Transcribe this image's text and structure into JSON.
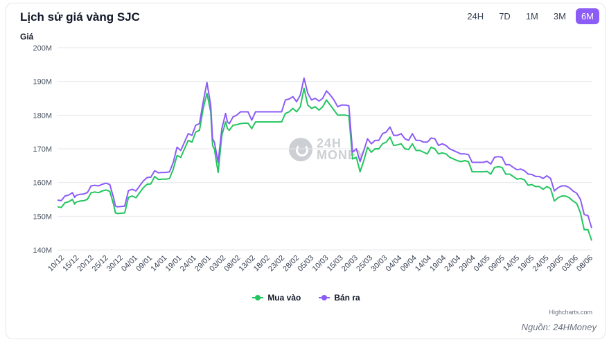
{
  "header": {
    "title": "Lịch sử giá vàng SJC"
  },
  "ranges": [
    {
      "label": "24H",
      "active": false
    },
    {
      "label": "7D",
      "active": false
    },
    {
      "label": "1M",
      "active": false
    },
    {
      "label": "3M",
      "active": false
    },
    {
      "label": "6M",
      "active": true
    }
  ],
  "watermark": {
    "line1": "24H",
    "line2": "MONEY"
  },
  "footer": {
    "credits": "Highcharts.com",
    "source": "Nguồn: 24HMoney"
  },
  "colors": {
    "buy": "#22c55e",
    "sell": "#8b5cf6",
    "grid": "#e5e7eb",
    "active_range": "#8b5cf6"
  },
  "chart_data": {
    "type": "line",
    "ylabel": "Giá",
    "ylim": [
      140,
      200
    ],
    "y_unit": "M",
    "y_ticks": [
      "140M",
      "150M",
      "160M",
      "170M",
      "180M",
      "190M",
      "200M"
    ],
    "x_ticks": [
      "10/12",
      "15/12",
      "20/12",
      "25/12",
      "30/12",
      "04/01",
      "09/01",
      "14/01",
      "19/01",
      "24/01",
      "29/01",
      "03/02",
      "08/02",
      "13/02",
      "18/02",
      "23/02",
      "28/02",
      "05/03",
      "10/03",
      "15/03",
      "20/03",
      "25/03",
      "30/03",
      "04/04",
      "09/04",
      "14/04",
      "19/04",
      "24/04",
      "29/04",
      "04/05",
      "09/05",
      "14/05",
      "19/05",
      "24/05",
      "29/05",
      "03/06",
      "08/06"
    ],
    "legend": {
      "position": "bottom-center"
    },
    "grid": true,
    "series": [
      {
        "name": "Mua vào",
        "points": [
          [
            0,
            152.8
          ],
          [
            1,
            152.6
          ],
          [
            2,
            154
          ],
          [
            3,
            154.3
          ],
          [
            4,
            155
          ],
          [
            4.6,
            153.6
          ],
          [
            5,
            154.2
          ],
          [
            6,
            154.5
          ],
          [
            7,
            154.6
          ],
          [
            8,
            155
          ],
          [
            9,
            157
          ],
          [
            10,
            157.2
          ],
          [
            11,
            157
          ],
          [
            12,
            157.5
          ],
          [
            13,
            157.8
          ],
          [
            14,
            157.4
          ],
          [
            15,
            153.5
          ],
          [
            15.5,
            151
          ],
          [
            16,
            150.8
          ],
          [
            17,
            150.9
          ],
          [
            18,
            151
          ],
          [
            19,
            155.6
          ],
          [
            20,
            156
          ],
          [
            21,
            155.5
          ],
          [
            22,
            157
          ],
          [
            23,
            158.5
          ],
          [
            24,
            159.5
          ],
          [
            25,
            159.6
          ],
          [
            26,
            161.8
          ],
          [
            27,
            160.9
          ],
          [
            28,
            161
          ],
          [
            29,
            161
          ],
          [
            30,
            161.2
          ],
          [
            31,
            164
          ],
          [
            32,
            168
          ],
          [
            33,
            167.5
          ],
          [
            34,
            170
          ],
          [
            35,
            172.5
          ],
          [
            36,
            172
          ],
          [
            37,
            175
          ],
          [
            38,
            175.5
          ],
          [
            39,
            182
          ],
          [
            40,
            186.5
          ],
          [
            41,
            181
          ],
          [
            41.5,
            171
          ],
          [
            42,
            170
          ],
          [
            43,
            163
          ],
          [
            44,
            174
          ],
          [
            45,
            178
          ],
          [
            45.5,
            176
          ],
          [
            46,
            175.5
          ],
          [
            47,
            177
          ],
          [
            48,
            177.2
          ],
          [
            49,
            177.5
          ],
          [
            50,
            177.6
          ],
          [
            51,
            177.6
          ],
          [
            52,
            176
          ],
          [
            53,
            178
          ],
          [
            54,
            178
          ],
          [
            55,
            178
          ],
          [
            56,
            178
          ],
          [
            57,
            178
          ],
          [
            58,
            178
          ],
          [
            59,
            178
          ],
          [
            60,
            178
          ],
          [
            61,
            180.5
          ],
          [
            62,
            181
          ],
          [
            63,
            182
          ],
          [
            64,
            181
          ],
          [
            65,
            182.5
          ],
          [
            66,
            188
          ],
          [
            67,
            183
          ],
          [
            68,
            182
          ],
          [
            69,
            182.5
          ],
          [
            70,
            181.5
          ],
          [
            71,
            182.5
          ],
          [
            72,
            184.5
          ],
          [
            73,
            183
          ],
          [
            74,
            181.5
          ],
          [
            75,
            180
          ],
          [
            76,
            180
          ],
          [
            77,
            180
          ],
          [
            78,
            179.8
          ],
          [
            79,
            167
          ],
          [
            80,
            167.5
          ],
          [
            81,
            163.2
          ],
          [
            82,
            166.5
          ],
          [
            83,
            170.5
          ],
          [
            84,
            169
          ],
          [
            85,
            170
          ],
          [
            86,
            170
          ],
          [
            87,
            171.5
          ],
          [
            88,
            172
          ],
          [
            89,
            173.5
          ],
          [
            90,
            171
          ],
          [
            91,
            171.2
          ],
          [
            92,
            171.5
          ],
          [
            93,
            170
          ],
          [
            94,
            169.8
          ],
          [
            95,
            171.5
          ],
          [
            96,
            169.5
          ],
          [
            97,
            169.5
          ],
          [
            98,
            169
          ],
          [
            99,
            168.5
          ],
          [
            100,
            170.5
          ],
          [
            101,
            170
          ],
          [
            102,
            168.5
          ],
          [
            103,
            168.8
          ],
          [
            104,
            168.5
          ],
          [
            105,
            167.5
          ],
          [
            106,
            167
          ],
          [
            107,
            166.5
          ],
          [
            108,
            166.2
          ],
          [
            109,
            166.5
          ],
          [
            110,
            166.2
          ],
          [
            111,
            163.2
          ],
          [
            112,
            163.2
          ],
          [
            113,
            163.2
          ],
          [
            114,
            163.2
          ],
          [
            115,
            163.3
          ],
          [
            116,
            162.5
          ],
          [
            117,
            164.5
          ],
          [
            118,
            164.7
          ],
          [
            119,
            164.5
          ],
          [
            120,
            162.5
          ],
          [
            121,
            162.5
          ],
          [
            122,
            161.8
          ],
          [
            123,
            161
          ],
          [
            124,
            161.2
          ],
          [
            125,
            160.8
          ],
          [
            126,
            159.2
          ],
          [
            127,
            159.4
          ],
          [
            128,
            158.8
          ],
          [
            129,
            158.8
          ],
          [
            130,
            158
          ],
          [
            131,
            158.8
          ],
          [
            132,
            158.2
          ],
          [
            133,
            154.5
          ],
          [
            134,
            155.5
          ],
          [
            135,
            156
          ],
          [
            136,
            156
          ],
          [
            137,
            155.5
          ],
          [
            138,
            154.5
          ],
          [
            139,
            153.8
          ],
          [
            140,
            151
          ],
          [
            141,
            146
          ],
          [
            142,
            146
          ],
          [
            143,
            142.8
          ]
        ]
      },
      {
        "name": "Bán ra",
        "points": [
          [
            0,
            154.8
          ],
          [
            1,
            154.6
          ],
          [
            2,
            156
          ],
          [
            3,
            156.3
          ],
          [
            4,
            157
          ],
          [
            4.6,
            155.6
          ],
          [
            5,
            156.2
          ],
          [
            6,
            156.5
          ],
          [
            7,
            156.6
          ],
          [
            8,
            157
          ],
          [
            9,
            159
          ],
          [
            10,
            159.2
          ],
          [
            11,
            159
          ],
          [
            12,
            159.5
          ],
          [
            13,
            159.8
          ],
          [
            14,
            159.4
          ],
          [
            15,
            155.5
          ],
          [
            15.5,
            153
          ],
          [
            16,
            152.8
          ],
          [
            17,
            152.9
          ],
          [
            18,
            153
          ],
          [
            19,
            157.6
          ],
          [
            20,
            158
          ],
          [
            21,
            157.5
          ],
          [
            22,
            159
          ],
          [
            23,
            160.5
          ],
          [
            24,
            161.5
          ],
          [
            25,
            161.6
          ],
          [
            26,
            163.5
          ],
          [
            27,
            162.9
          ],
          [
            28,
            163
          ],
          [
            29,
            163
          ],
          [
            30,
            163.2
          ],
          [
            31,
            166
          ],
          [
            32,
            170.5
          ],
          [
            33,
            169.5
          ],
          [
            34,
            172
          ],
          [
            35,
            174.5
          ],
          [
            36,
            174
          ],
          [
            37,
            177
          ],
          [
            38,
            177.5
          ],
          [
            39,
            184
          ],
          [
            40,
            189.7
          ],
          [
            41,
            183
          ],
          [
            41.5,
            173
          ],
          [
            42,
            172
          ],
          [
            43,
            166
          ],
          [
            44,
            176
          ],
          [
            45,
            180.5
          ],
          [
            45.5,
            178
          ],
          [
            46,
            177.5
          ],
          [
            47,
            179.5
          ],
          [
            48,
            180
          ],
          [
            49,
            181
          ],
          [
            50,
            181
          ],
          [
            51,
            181
          ],
          [
            52,
            178.5
          ],
          [
            53,
            181
          ],
          [
            54,
            181
          ],
          [
            55,
            181
          ],
          [
            56,
            181
          ],
          [
            57,
            181
          ],
          [
            58,
            181
          ],
          [
            59,
            181
          ],
          [
            60,
            181
          ],
          [
            61,
            184.5
          ],
          [
            62,
            184.8
          ],
          [
            63,
            185.5
          ],
          [
            64,
            184
          ],
          [
            65,
            186
          ],
          [
            66,
            191
          ],
          [
            67,
            186.5
          ],
          [
            68,
            184.5
          ],
          [
            69,
            185
          ],
          [
            70,
            184.2
          ],
          [
            71,
            185
          ],
          [
            72,
            187.2
          ],
          [
            73,
            186
          ],
          [
            74,
            184.5
          ],
          [
            75,
            182.5
          ],
          [
            76,
            183
          ],
          [
            77,
            183
          ],
          [
            78,
            182.8
          ],
          [
            79,
            169
          ],
          [
            80,
            170
          ],
          [
            81,
            166.2
          ],
          [
            82,
            169.5
          ],
          [
            83,
            173
          ],
          [
            84,
            171.5
          ],
          [
            85,
            172.5
          ],
          [
            86,
            172.5
          ],
          [
            87,
            174.5
          ],
          [
            88,
            175
          ],
          [
            89,
            176.5
          ],
          [
            90,
            174
          ],
          [
            91,
            174
          ],
          [
            92,
            174.5
          ],
          [
            93,
            173
          ],
          [
            94,
            172.5
          ],
          [
            95,
            174.5
          ],
          [
            96,
            172.5
          ],
          [
            97,
            172.5
          ],
          [
            98,
            172
          ],
          [
            99,
            172
          ],
          [
            100,
            173.2
          ],
          [
            101,
            173
          ],
          [
            102,
            171
          ],
          [
            103,
            171.5
          ],
          [
            104,
            171
          ],
          [
            105,
            170
          ],
          [
            106,
            169.5
          ],
          [
            107,
            169
          ],
          [
            108,
            168.5
          ],
          [
            109,
            168.5
          ],
          [
            110,
            168.3
          ],
          [
            111,
            166
          ],
          [
            112,
            166
          ],
          [
            113,
            166
          ],
          [
            114,
            166
          ],
          [
            115,
            166.3
          ],
          [
            116,
            165.5
          ],
          [
            117,
            167.5
          ],
          [
            118,
            167.7
          ],
          [
            119,
            167.5
          ],
          [
            120,
            165.3
          ],
          [
            121,
            165.3
          ],
          [
            122,
            164.5
          ],
          [
            123,
            163.8
          ],
          [
            124,
            164
          ],
          [
            125,
            163.5
          ],
          [
            126,
            162.5
          ],
          [
            127,
            162.4
          ],
          [
            128,
            161.8
          ],
          [
            129,
            161.8
          ],
          [
            130,
            161.2
          ],
          [
            131,
            162
          ],
          [
            132,
            161.2
          ],
          [
            133,
            157.5
          ],
          [
            134,
            158.5
          ],
          [
            135,
            159
          ],
          [
            136,
            159
          ],
          [
            137,
            158.5
          ],
          [
            138,
            157.5
          ],
          [
            139,
            156.8
          ],
          [
            140,
            155
          ],
          [
            141,
            150.5
          ],
          [
            142,
            150.2
          ],
          [
            143,
            146.5
          ]
        ]
      }
    ]
  }
}
